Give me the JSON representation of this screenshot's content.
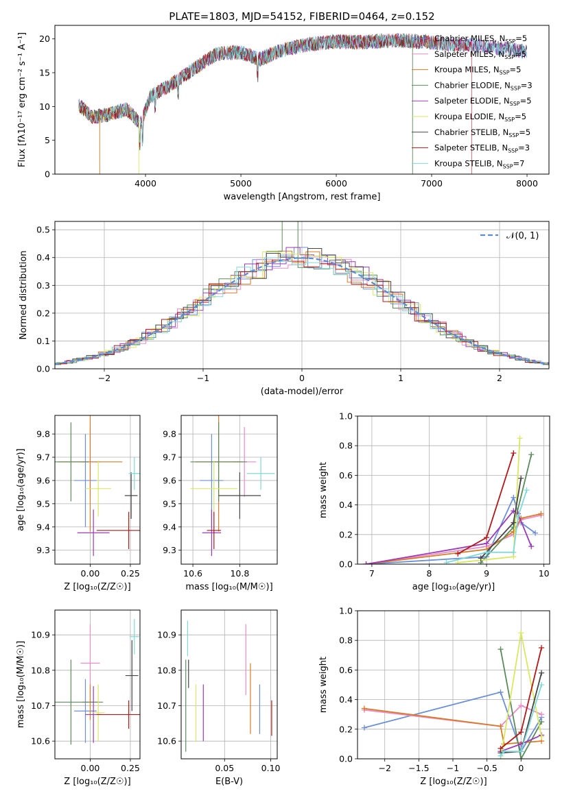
{
  "figure_title": "PLATE=1803, MJD=54152, FIBERID=0464, z=0.152",
  "models": [
    {
      "name": "Chabrier MILES, N",
      "nssp": "5",
      "color": "#6a8fd8"
    },
    {
      "name": "Salpeter MILES, N",
      "nssp": "5",
      "color": "#e98cc8"
    },
    {
      "name": "Kroupa MILES, N",
      "nssp": "5",
      "color": "#d97a24"
    },
    {
      "name": "Chabrier ELODIE, N",
      "nssp": "3",
      "color": "#5a8a5a"
    },
    {
      "name": "Salpeter ELODIE, N",
      "nssp": "5",
      "color": "#9a3ab8"
    },
    {
      "name": "Kroupa ELODIE, N",
      "nssp": "5",
      "color": "#d8e860"
    },
    {
      "name": "Chabrier STELIB, N",
      "nssp": "5",
      "color": "#444444"
    },
    {
      "name": "Salpeter STELIB, N",
      "nssp": "3",
      "color": "#b01818"
    },
    {
      "name": "Kroupa STELIB, N",
      "nssp": "7",
      "color": "#7fd8d8"
    }
  ],
  "chart_data": [
    {
      "id": "spectrum",
      "type": "line",
      "xlabel": "wavelength [Angstrom, rest frame]",
      "ylabel": "Flux [fλ10⁻¹⁷ erg cm⁻² s⁻¹ A⁻¹]",
      "xlim": [
        3050,
        8230
      ],
      "ylim": [
        0,
        22
      ],
      "xticks": [
        4000,
        5000,
        6000,
        7000,
        8000
      ],
      "yticks": [
        0,
        5,
        10,
        15,
        20
      ],
      "continuum": [
        [
          3300,
          10.2
        ],
        [
          3450,
          8.4
        ],
        [
          3600,
          8.8
        ],
        [
          3800,
          9.6
        ],
        [
          3950,
          7.5
        ],
        [
          4050,
          11.5
        ],
        [
          4300,
          13.5
        ],
        [
          4500,
          15.5
        ],
        [
          4750,
          17.8
        ],
        [
          5000,
          18.0
        ],
        [
          5200,
          17.0
        ],
        [
          5400,
          18.2
        ],
        [
          5700,
          19.2
        ],
        [
          6000,
          19.6
        ],
        [
          6300,
          19.5
        ],
        [
          6600,
          19.8
        ],
        [
          6900,
          19.6
        ],
        [
          7200,
          19.2
        ],
        [
          7500,
          19.0
        ],
        [
          7800,
          18.5
        ],
        [
          8000,
          18.1
        ]
      ]
    },
    {
      "id": "residuals",
      "type": "histogram",
      "xlabel": "(data-model)/error",
      "ylabel": "Normed distribution",
      "xlim": [
        -2.5,
        2.5
      ],
      "ylim": [
        0,
        0.53
      ],
      "xticks": [
        -2,
        -1,
        0,
        1,
        2
      ],
      "yticks": [
        0.0,
        0.1,
        0.2,
        0.3,
        0.4,
        0.5
      ],
      "reference_label": "𝒩(0, 1)",
      "reference_color": "#5b8bd8",
      "grid": true
    },
    {
      "id": "age_vs_Z",
      "type": "scatter_errorbar",
      "xlabel": "Z [log₁₀(Z/Z☉)]",
      "ylabel": "age  [log₁₀(age/yr)]",
      "xlim": [
        -0.22,
        0.31
      ],
      "ylim": [
        9.24,
        9.88
      ],
      "xticks": [
        0.0,
        0.25
      ],
      "xtick_labels": [
        "0.00",
        "0.25"
      ],
      "yticks": [
        9.3,
        9.4,
        9.5,
        9.6,
        9.7,
        9.8
      ],
      "points": [
        {
          "x": -0.03,
          "y": 9.6,
          "xerr": 0.07,
          "yerr": 0.2
        },
        {
          "x": 0.0,
          "y": 9.68,
          "xerr": 0.06,
          "yerr": 0.15
        },
        {
          "x": 0.0,
          "y": 9.68,
          "xerr": 0.2,
          "yerr": 0.3
        },
        {
          "x": -0.12,
          "y": 9.68,
          "xerr": 0.11,
          "yerr": 0.17
        },
        {
          "x": 0.02,
          "y": 9.375,
          "xerr": 0.1,
          "yerr": 0.1
        },
        {
          "x": 0.05,
          "y": 9.565,
          "xerr": 0.08,
          "yerr": 0.12
        },
        {
          "x": 0.255,
          "y": 9.535,
          "xerr": 0.04,
          "yerr": 0.1
        },
        {
          "x": 0.24,
          "y": 9.385,
          "xerr": 0.2,
          "yerr": 0.08
        },
        {
          "x": 0.275,
          "y": 9.63,
          "xerr": 0.035,
          "yerr": 0.07
        }
      ]
    },
    {
      "id": "age_vs_mass",
      "type": "scatter_errorbar",
      "xlabel": "mass [log₁₀(M/M☉)]",
      "ylabel": "",
      "xlim": [
        10.55,
        10.96
      ],
      "ylim": [
        9.24,
        9.88
      ],
      "xticks": [
        10.6,
        10.8
      ],
      "yticks": [
        9.3,
        9.4,
        9.5,
        9.6,
        9.7,
        9.8
      ],
      "points": [
        {
          "x": 10.68,
          "y": 9.6,
          "xerr": 0.05,
          "yerr": 0.2
        },
        {
          "x": 10.82,
          "y": 9.68,
          "xerr": 0.05,
          "yerr": 0.15
        },
        {
          "x": 10.71,
          "y": 9.68,
          "xerr": 0.1,
          "yerr": 0.3
        },
        {
          "x": 10.71,
          "y": 9.68,
          "xerr": 0.12,
          "yerr": 0.17
        },
        {
          "x": 10.68,
          "y": 9.375,
          "xerr": 0.04,
          "yerr": 0.1
        },
        {
          "x": 10.69,
          "y": 9.565,
          "xerr": 0.1,
          "yerr": 0.12
        },
        {
          "x": 10.8,
          "y": 9.535,
          "xerr": 0.09,
          "yerr": 0.1
        },
        {
          "x": 10.69,
          "y": 9.385,
          "xerr": 0.03,
          "yerr": 0.08
        },
        {
          "x": 10.89,
          "y": 9.63,
          "xerr": 0.06,
          "yerr": 0.07
        }
      ]
    },
    {
      "id": "weight_vs_age",
      "type": "line",
      "xlabel": "age  [log₁₀(age/yr)]",
      "ylabel": "mass weight",
      "xlim": [
        6.75,
        10.1
      ],
      "ylim": [
        0,
        1.0
      ],
      "xticks": [
        7,
        8,
        9,
        10
      ],
      "yticks": [
        0.0,
        0.2,
        0.4,
        0.6,
        0.8,
        1.0
      ],
      "series": [
        {
          "x": [
            6.9,
            9.0,
            9.47,
            9.6,
            9.85
          ],
          "y": [
            0.0,
            0.05,
            0.45,
            0.28,
            0.21
          ]
        },
        {
          "x": [
            6.9,
            9.0,
            9.47,
            9.6,
            9.95
          ],
          "y": [
            0.0,
            0.12,
            0.2,
            0.3,
            0.33
          ]
        },
        {
          "x": [
            6.9,
            9.0,
            9.47,
            9.6,
            9.95
          ],
          "y": [
            0.0,
            0.1,
            0.22,
            0.31,
            0.34
          ]
        },
        {
          "x": [
            8.9,
            9.47,
            9.78
          ],
          "y": [
            0.01,
            0.25,
            0.74
          ]
        },
        {
          "x": [
            6.9,
            9.0,
            9.47,
            9.55,
            9.78
          ],
          "y": [
            0.0,
            0.14,
            0.36,
            0.34,
            0.12
          ]
        },
        {
          "x": [
            8.5,
            9.47,
            9.58
          ],
          "y": [
            0.01,
            0.05,
            0.85
          ]
        },
        {
          "x": [
            8.9,
            9.47,
            9.6
          ],
          "y": [
            0.04,
            0.28,
            0.58
          ]
        },
        {
          "x": [
            8.5,
            9.0,
            9.47
          ],
          "y": [
            0.07,
            0.18,
            0.75
          ]
        },
        {
          "x": [
            8.3,
            9.0,
            9.47,
            9.55,
            9.7
          ],
          "y": [
            0.01,
            0.08,
            0.08,
            0.32,
            0.5
          ]
        }
      ]
    },
    {
      "id": "mass_vs_Z",
      "type": "scatter_errorbar",
      "xlabel": "Z [log₁₀(Z/Z☉)]",
      "ylabel": "mass [log₁₀(M/M☉)]",
      "xlim": [
        -0.22,
        0.31
      ],
      "ylim": [
        10.55,
        10.97
      ],
      "xticks": [
        0.0,
        0.25
      ],
      "xtick_labels": [
        "0.00",
        "0.25"
      ],
      "yticks": [
        10.6,
        10.7,
        10.8,
        10.9
      ],
      "points": [
        {
          "x": -0.03,
          "y": 10.685,
          "xerr": 0.07,
          "yerr": 0.09
        },
        {
          "x": 0.0,
          "y": 10.82,
          "xerr": 0.06,
          "yerr": 0.11
        },
        {
          "x": 0.0,
          "y": 10.71,
          "xerr": 0.05,
          "yerr": 0.05
        },
        {
          "x": -0.12,
          "y": 10.71,
          "xerr": 0.2,
          "yerr": 0.12
        },
        {
          "x": 0.02,
          "y": 10.675,
          "xerr": 0.05,
          "yerr": 0.08
        },
        {
          "x": 0.05,
          "y": 10.68,
          "xerr": 0.04,
          "yerr": 0.08
        },
        {
          "x": 0.26,
          "y": 10.785,
          "xerr": 0.04,
          "yerr": 0.1
        },
        {
          "x": 0.24,
          "y": 10.675,
          "xerr": 0.2,
          "yerr": 0.04
        },
        {
          "x": 0.275,
          "y": 10.895,
          "xerr": 0.03,
          "yerr": 0.05
        }
      ]
    },
    {
      "id": "mass_vs_EBV",
      "type": "scatter_errorbar",
      "xlabel": "E(B-V)",
      "ylabel": "",
      "xlim": [
        0.003,
        0.107
      ],
      "ylim": [
        10.55,
        10.97
      ],
      "xticks": [
        0.05,
        0.1
      ],
      "xtick_labels": [
        "0.05",
        "0.10"
      ],
      "yticks": [
        10.6,
        10.7,
        10.8,
        10.9
      ],
      "points": [
        {
          "x": 0.088,
          "y": 10.69,
          "xerr": 0,
          "yerr": 0.07
        },
        {
          "x": 0.073,
          "y": 10.83,
          "xerr": 0,
          "yerr": 0.1
        },
        {
          "x": 0.078,
          "y": 10.72,
          "xerr": 0,
          "yerr": 0.1
        },
        {
          "x": 0.008,
          "y": 10.7,
          "xerr": 0,
          "yerr": 0.13
        },
        {
          "x": 0.027,
          "y": 10.68,
          "xerr": 0,
          "yerr": 0.08
        },
        {
          "x": 0.019,
          "y": 10.68,
          "xerr": 0,
          "yerr": 0.08
        },
        {
          "x": 0.011,
          "y": 10.79,
          "xerr": 0,
          "yerr": 0.04
        },
        {
          "x": 0.101,
          "y": 10.665,
          "xerr": 0,
          "yerr": 0.05
        },
        {
          "x": 0.01,
          "y": 10.89,
          "xerr": 0,
          "yerr": 0.05
        }
      ]
    },
    {
      "id": "weight_vs_Z",
      "type": "line",
      "xlabel": "Z [log₁₀(Z/Z☉)]",
      "ylabel": "mass weight",
      "xlim": [
        -2.4,
        0.42
      ],
      "ylim": [
        0,
        1.0
      ],
      "xticks": [
        -2.0,
        -1.5,
        -1.0,
        -0.5,
        0.0
      ],
      "yticks": [
        0.0,
        0.2,
        0.4,
        0.6,
        0.8,
        1.0
      ],
      "series": [
        {
          "x": [
            -2.3,
            -0.3,
            0.0,
            0.3
          ],
          "y": [
            0.21,
            0.45,
            0.05,
            0.28
          ]
        },
        {
          "x": [
            -2.3,
            -0.3,
            0.0,
            0.3
          ],
          "y": [
            0.33,
            0.22,
            0.36,
            0.3
          ]
        },
        {
          "x": [
            -2.3,
            -0.3,
            -0.25,
            0.3
          ],
          "y": [
            0.34,
            0.22,
            0.1,
            0.12
          ]
        },
        {
          "x": [
            -0.3,
            0.0,
            0.3
          ],
          "y": [
            0.74,
            0.0,
            0.25
          ]
        },
        {
          "x": [
            -0.3,
            0.0,
            0.3
          ],
          "y": [
            0.05,
            0.1,
            0.16
          ]
        },
        {
          "x": [
            -0.3,
            0.0,
            0.3
          ],
          "y": [
            0.0,
            0.85,
            0.15
          ]
        },
        {
          "x": [
            -0.3,
            0.0,
            0.3
          ],
          "y": [
            0.04,
            0.05,
            0.58
          ]
        },
        {
          "x": [
            -0.3,
            0.0,
            0.3
          ],
          "y": [
            0.07,
            0.18,
            0.75
          ]
        },
        {
          "x": [
            -0.3,
            -0.25,
            0.0,
            0.3
          ],
          "y": [
            0.02,
            0.05,
            0.05,
            0.5
          ]
        }
      ]
    }
  ]
}
